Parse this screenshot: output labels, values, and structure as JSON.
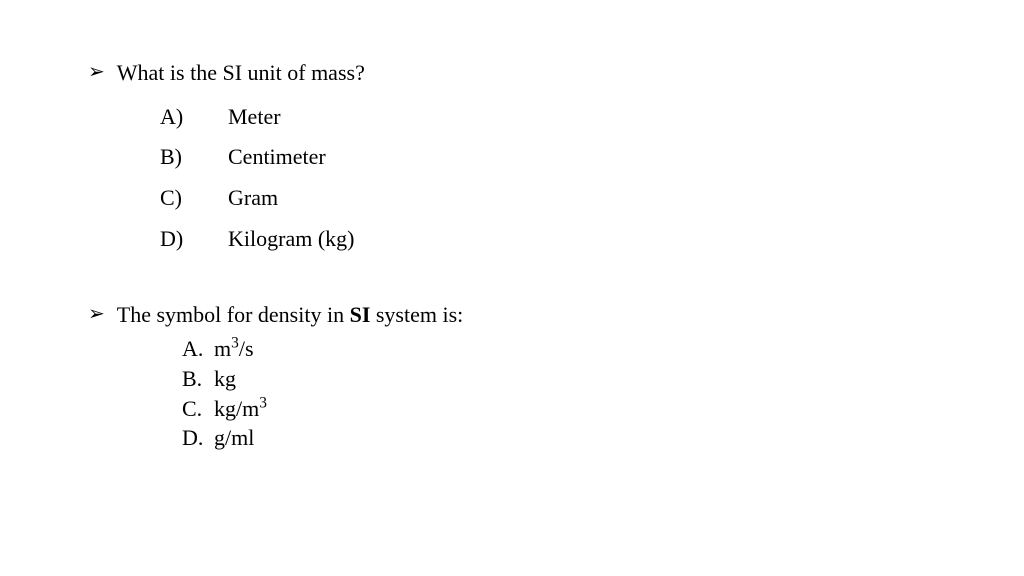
{
  "questions": [
    {
      "bullet": "➢",
      "text": "What is the SI unit of mass?",
      "style": "wide",
      "options": [
        {
          "letter": "A)",
          "text": "Meter"
        },
        {
          "letter": "B)",
          "text": "Centimeter"
        },
        {
          "letter": "C)",
          "text": "Gram"
        },
        {
          "letter": "D)",
          "text": "Kilogram (kg)"
        }
      ]
    },
    {
      "bullet": "➢",
      "text_pre": "The symbol for density in ",
      "text_bold": "SI",
      "text_post": " system is:",
      "style": "narrow",
      "options": [
        {
          "letter": "A.",
          "text_pre": "m",
          "sup": "3",
          "text_post": "/s"
        },
        {
          "letter": "B.",
          "text": "kg"
        },
        {
          "letter": "C.",
          "text_pre": "kg/m",
          "sup": "3",
          "text_post": ""
        },
        {
          "letter": "D.",
          "text": "g/ml"
        }
      ]
    }
  ],
  "colors": {
    "background": "#ffffff",
    "text": "#000000"
  },
  "typography": {
    "font_family": "Times New Roman",
    "question_fontsize": 22,
    "option_fontsize": 22
  }
}
